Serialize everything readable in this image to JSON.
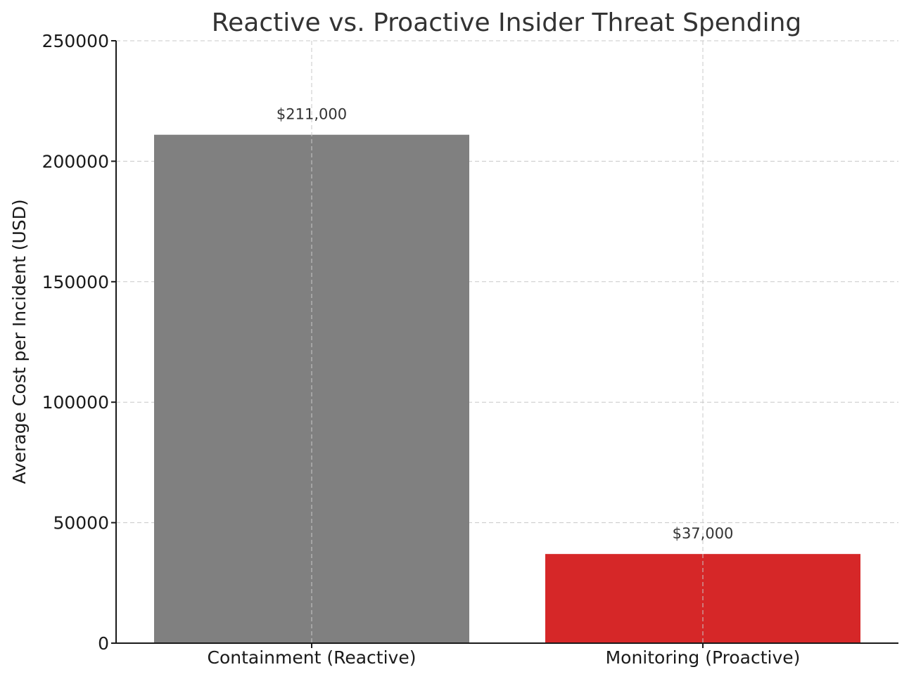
{
  "chart_data": {
    "type": "bar",
    "title": "Reactive vs. Proactive Insider Threat Spending",
    "xlabel": "",
    "ylabel": "Average Cost per Incident (USD)",
    "categories": [
      "Containment (Reactive)",
      "Monitoring (Proactive)"
    ],
    "values": [
      211000,
      37000
    ],
    "value_labels": [
      "$211,000",
      "$37,000"
    ],
    "colors": [
      "#808080",
      "#d62728"
    ],
    "ylim": [
      0,
      250000
    ],
    "yticks": [
      0,
      50000,
      100000,
      150000,
      200000,
      250000
    ],
    "ytick_labels": [
      "0",
      "50000",
      "100000",
      "150000",
      "200000",
      "250000"
    ],
    "grid": true
  }
}
